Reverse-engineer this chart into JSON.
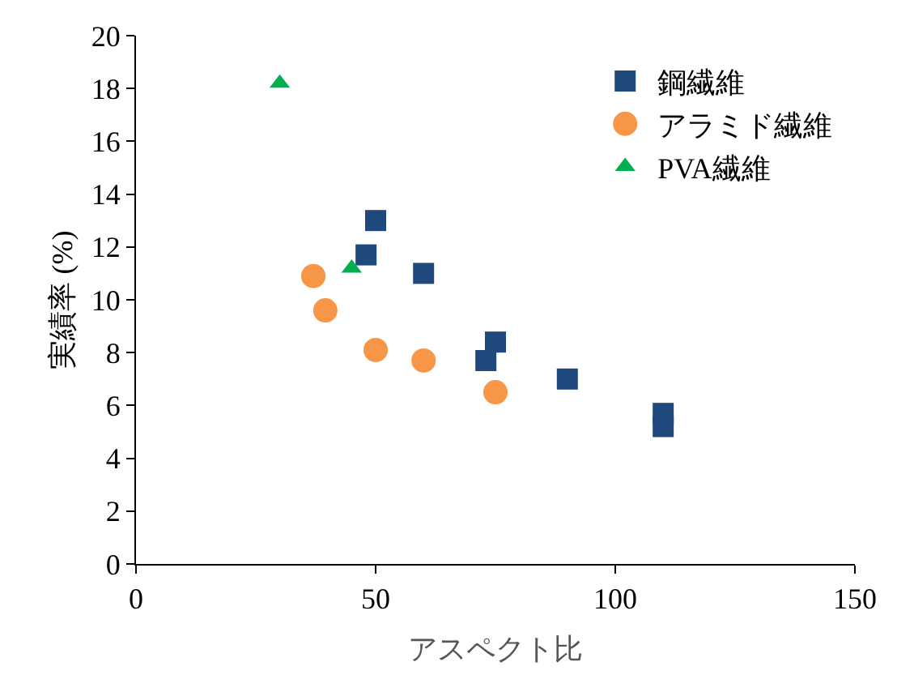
{
  "chart_data": {
    "type": "scatter",
    "xlabel": "アスペクト比",
    "ylabel": "実績率 (%)",
    "xlim": [
      0,
      150
    ],
    "xticks": [
      0,
      50,
      100,
      150
    ],
    "ylim": [
      0,
      20
    ],
    "yticks": [
      0,
      2,
      4,
      6,
      8,
      10,
      12,
      14,
      16,
      18,
      20
    ],
    "legend": "top right",
    "series": [
      {
        "name": "鋼繊維",
        "color": "#1f497d",
        "marker": "square",
        "x": [
          50,
          48,
          60,
          75,
          73,
          90,
          110,
          110
        ],
        "values": [
          13.0,
          11.7,
          11.0,
          8.4,
          7.7,
          7.0,
          5.7,
          5.2
        ]
      },
      {
        "name": "アラミド繊維",
        "color": "#f79646",
        "marker": "circle",
        "x": [
          37,
          39.5,
          50,
          60,
          75
        ],
        "values": [
          10.9,
          9.6,
          8.1,
          7.7,
          6.5
        ]
      },
      {
        "name": "PVA繊維",
        "color": "#00b050",
        "marker": "triangle",
        "x": [
          30,
          45
        ],
        "values": [
          18.2,
          11.2
        ]
      }
    ]
  }
}
